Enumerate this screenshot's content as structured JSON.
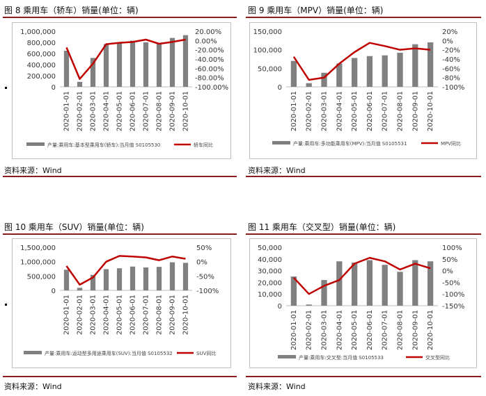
{
  "charts": [
    {
      "figure_title": "图 8 乘用车（轿车）销量(单位：辆)",
      "source": "资料来源：Wind",
      "left_ticks": [
        "1,000,000",
        "800,000",
        "600,000",
        "400,000",
        "200,000",
        "0"
      ],
      "right_ticks": [
        "20.00%",
        "0.00%",
        "-20.00%",
        "-40.00%",
        "-60.00%",
        "-80.00%",
        "-100.00%"
      ],
      "legend_bar": "产量:乘用车:基本型乘用车(轿车):当月值 S0105530",
      "legend_line": "轿车同比"
    },
    {
      "figure_title": "图 9 乘用车（MPV）销量(单位：辆)",
      "source": "资料来源：Wind",
      "left_ticks": [
        "150,000",
        "100,000",
        "50,000",
        "0"
      ],
      "right_ticks": [
        "20%",
        "0%",
        "-20%",
        "-40%",
        "-60%",
        "-80%",
        "-100%"
      ],
      "legend_bar": "产量:乘用车:多功能乘用车(MPV):当月值 S0105531",
      "legend_line": "MPV同比"
    },
    {
      "figure_title": "图 10 乘用车（SUV）销量(单位：辆)",
      "source": "资料来源：Wind",
      "left_ticks": [
        "1,500,000",
        "1,000,000",
        "500,000",
        "0"
      ],
      "right_ticks": [
        "50%",
        "0%",
        "-50%",
        "-100%"
      ],
      "legend_bar": "产量:乘用车:运动型多用途乘用车(SUV):当月值 S0105532",
      "legend_line": "SUV同比"
    },
    {
      "figure_title": "图 11 乘用车（交叉型）销量(单位：辆)",
      "source": "资料来源：Wind",
      "left_ticks": [
        "50,000",
        "40,000",
        "30,000",
        "20,000",
        "10,000",
        "0"
      ],
      "right_ticks": [
        "100%",
        "50%",
        "0%",
        "-50%",
        "-100%",
        "-150%"
      ],
      "legend_bar": "产量:乘用车:交叉型:当月值 S0105533",
      "legend_line": "交叉型同比"
    }
  ],
  "chart_data": [
    {
      "type": "bar",
      "x": [
        "2020-01-01",
        "2020-02-01",
        "2020-03-01",
        "2020-04-01",
        "2020-05-01",
        "2020-06-01",
        "2020-07-01",
        "2020-08-01",
        "2020-09-01",
        "2020-10-01"
      ],
      "series": [
        {
          "name": "产量:乘用车:基本型乘用车(轿车):当月值 S0105530",
          "type": "bar",
          "axis": "left",
          "values": [
            650000,
            90000,
            520000,
            770000,
            800000,
            830000,
            800000,
            780000,
            880000,
            930000
          ]
        },
        {
          "name": "轿车同比",
          "type": "line",
          "axis": "right",
          "values": [
            -15,
            -83,
            -50,
            -8,
            -5,
            -3,
            2,
            -7,
            -3,
            2
          ]
        }
      ],
      "ylim": [
        0,
        1000000
      ],
      "y2lim": [
        -100,
        20
      ],
      "colors": {
        "bar": "#808080",
        "line": "#c00000"
      }
    },
    {
      "type": "bar",
      "x": [
        "2020-01-01",
        "2020-02-01",
        "2020-03-01",
        "2020-04-01",
        "2020-05-01",
        "2020-06-01",
        "2020-07-01",
        "2020-08-01",
        "2020-09-01",
        "2020-10-01"
      ],
      "series": [
        {
          "name": "产量:乘用车:多功能乘用车(MPV):当月值 S0105531",
          "type": "bar",
          "axis": "left",
          "values": [
            70000,
            10000,
            38000,
            63000,
            78000,
            83000,
            85000,
            92000,
            115000,
            120000
          ]
        },
        {
          "name": "MPV同比",
          "type": "line",
          "axis": "right",
          "values": [
            -35,
            -85,
            -80,
            -50,
            -25,
            -5,
            -12,
            -20,
            -17,
            -20
          ]
        }
      ],
      "ylim": [
        0,
        150000
      ],
      "y2lim": [
        -100,
        20
      ],
      "colors": {
        "bar": "#808080",
        "line": "#c00000"
      }
    },
    {
      "type": "bar",
      "x": [
        "2020-01-01",
        "2020-02-01",
        "2020-03-01",
        "2020-04-01",
        "2020-05-01",
        "2020-06-01",
        "2020-07-01",
        "2020-08-01",
        "2020-09-01",
        "2020-10-01"
      ],
      "series": [
        {
          "name": "产量:乘用车:运动型多用途乘用车(SUV):当月值 S0105532",
          "type": "bar",
          "axis": "left",
          "values": [
            720000,
            90000,
            540000,
            740000,
            770000,
            830000,
            800000,
            820000,
            980000,
            960000
          ]
        },
        {
          "name": "SUV同比",
          "type": "line",
          "axis": "right",
          "values": [
            -15,
            -80,
            -55,
            0,
            20,
            18,
            15,
            5,
            18,
            10
          ]
        }
      ],
      "ylim": [
        0,
        1500000
      ],
      "y2lim": [
        -100,
        50
      ],
      "colors": {
        "bar": "#808080",
        "line": "#c00000"
      }
    },
    {
      "type": "bar",
      "x": [
        "2020-01-01",
        "2020-02-01",
        "2020-03-01",
        "2020-04-01",
        "2020-05-01",
        "2020-06-01",
        "2020-07-01",
        "2020-08-01",
        "2020-09-01",
        "2020-10-01"
      ],
      "series": [
        {
          "name": "产量:乘用车:交叉型:当月值 S0105533",
          "type": "bar",
          "axis": "left",
          "values": [
            25000,
            1000,
            22000,
            38000,
            37000,
            39000,
            35000,
            29000,
            39000,
            38000
          ]
        },
        {
          "name": "交叉型同比",
          "type": "line",
          "axis": "right",
          "values": [
            -30,
            -100,
            -65,
            -40,
            30,
            55,
            40,
            5,
            30,
            10
          ]
        }
      ],
      "ylim": [
        0,
        50000
      ],
      "y2lim": [
        -150,
        100
      ],
      "colors": {
        "bar": "#808080",
        "line": "#c00000"
      }
    }
  ]
}
